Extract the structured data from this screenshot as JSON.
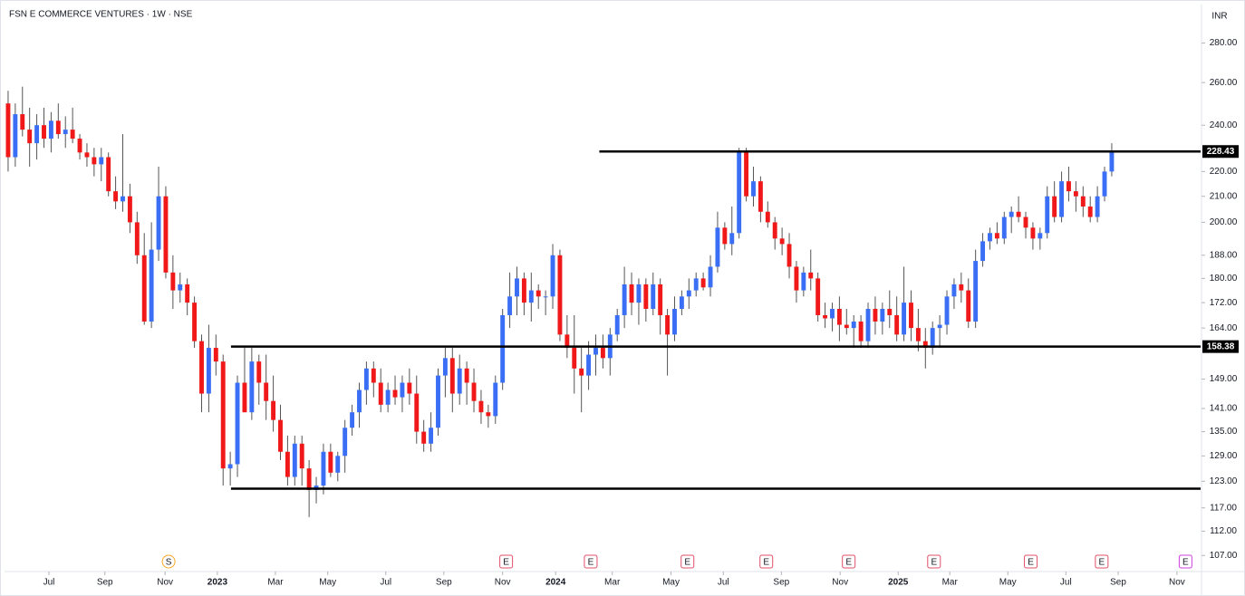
{
  "chart_data": {
    "type": "candlestick",
    "title": "FSN E COMMERCE VENTURES · 1W · NSE",
    "currency": "INR",
    "up_color": "#3a6ff5",
    "down_color": "#f01818",
    "log_scale": true,
    "xlim": [
      -0.5,
      166.4
    ],
    "ylim": [
      104,
      301
    ],
    "yticks": [
      280,
      260,
      240,
      220,
      210,
      200,
      188,
      180,
      172,
      164,
      149,
      141,
      135,
      129,
      123,
      117,
      112,
      107
    ],
    "yticks_format": "fixed2",
    "xticks": [
      {
        "value": 5.7,
        "label": "Jul"
      },
      {
        "value": 13.5,
        "label": "Sep"
      },
      {
        "value": 21.9,
        "label": "Nov"
      },
      {
        "value": 29.2,
        "label": "2023"
      },
      {
        "value": 37.3,
        "label": "Mar"
      },
      {
        "value": 44.6,
        "label": "May"
      },
      {
        "value": 52.7,
        "label": "Jul"
      },
      {
        "value": 60.8,
        "label": "Sep"
      },
      {
        "value": 69.0,
        "label": "Nov"
      },
      {
        "value": 76.4,
        "label": "2024"
      },
      {
        "value": 84.3,
        "label": "Mar"
      },
      {
        "value": 92.5,
        "label": "May"
      },
      {
        "value": 99.8,
        "label": "Jul"
      },
      {
        "value": 107.9,
        "label": "Sep"
      },
      {
        "value": 116.1,
        "label": "Nov"
      },
      {
        "value": 124.2,
        "label": "2025"
      },
      {
        "value": 131.4,
        "label": "Mar"
      },
      {
        "value": 139.5,
        "label": "May"
      },
      {
        "value": 147.6,
        "label": "Jul"
      },
      {
        "value": 154.9,
        "label": "Sep"
      },
      {
        "value": 163.1,
        "label": "Nov"
      }
    ],
    "levels": [
      {
        "value": 228.43,
        "start": 82.5,
        "label": "228.43"
      },
      {
        "value": 158.38,
        "start": 31.1,
        "label": "158.38"
      },
      {
        "value": 121.3,
        "start": 31.1
      }
    ],
    "events": [
      {
        "x": 22.4,
        "label": "S",
        "color": "#f5a623"
      },
      {
        "x": 69.5,
        "label": "E",
        "color": "#e0506a"
      },
      {
        "x": 81.3,
        "label": "E",
        "color": "#e0506a"
      },
      {
        "x": 94.8,
        "label": "E",
        "color": "#e0506a"
      },
      {
        "x": 105.8,
        "label": "E",
        "color": "#e0506a"
      },
      {
        "x": 117.3,
        "label": "E",
        "color": "#e0506a"
      },
      {
        "x": 129.2,
        "label": "E",
        "color": "#e0506a"
      },
      {
        "x": 142.7,
        "label": "E",
        "color": "#e0506a"
      },
      {
        "x": 152.6,
        "label": "E",
        "color": "#e0506a"
      },
      {
        "x": 164.3,
        "label": "E",
        "color": "#d040e0"
      }
    ],
    "candles": [
      [
        250,
        256,
        220,
        226
      ],
      [
        226,
        250,
        222,
        245
      ],
      [
        245,
        258,
        235,
        238
      ],
      [
        238,
        248,
        222,
        232
      ],
      [
        232,
        245,
        225,
        240
      ],
      [
        240,
        248,
        230,
        234
      ],
      [
        234,
        246,
        228,
        242
      ],
      [
        242,
        250,
        234,
        236
      ],
      [
        236,
        244,
        230,
        238
      ],
      [
        238,
        248,
        232,
        234
      ],
      [
        234,
        236,
        225,
        228
      ],
      [
        228,
        232,
        222,
        226
      ],
      [
        226,
        230,
        218,
        223
      ],
      [
        223,
        230,
        216,
        226
      ],
      [
        226,
        228,
        210,
        212
      ],
      [
        212,
        218,
        205,
        208
      ],
      [
        208,
        236,
        204,
        210
      ],
      [
        210,
        215,
        196,
        200
      ],
      [
        200,
        204,
        185,
        188
      ],
      [
        188,
        196,
        165,
        166
      ],
      [
        166,
        200,
        164,
        190
      ],
      [
        190,
        222,
        186,
        210
      ],
      [
        210,
        214,
        180,
        182
      ],
      [
        182,
        188,
        170,
        176
      ],
      [
        176,
        182,
        172,
        178
      ],
      [
        178,
        180,
        168,
        172
      ],
      [
        172,
        174,
        158,
        160
      ],
      [
        160,
        162,
        140,
        145
      ],
      [
        145,
        165,
        140,
        158
      ],
      [
        158,
        162,
        150,
        154
      ],
      [
        154,
        156,
        122,
        126
      ],
      [
        126,
        130,
        122,
        127
      ],
      [
        127,
        150,
        124,
        148
      ],
      [
        148,
        158,
        140,
        140
      ],
      [
        140,
        158,
        138,
        154
      ],
      [
        154,
        156,
        142,
        148
      ],
      [
        148,
        156,
        138,
        143
      ],
      [
        143,
        150,
        135,
        138
      ],
      [
        138,
        142,
        128,
        130
      ],
      [
        130,
        134,
        122,
        124
      ],
      [
        124,
        134,
        122,
        132
      ],
      [
        132,
        134,
        122,
        126
      ],
      [
        126,
        128,
        115,
        121
      ],
      [
        121,
        124,
        118,
        122
      ],
      [
        122,
        132,
        120,
        130
      ],
      [
        130,
        132,
        124,
        125
      ],
      [
        125,
        130,
        123,
        129
      ],
      [
        129,
        138,
        125,
        136
      ],
      [
        136,
        142,
        134,
        140
      ],
      [
        140,
        148,
        136,
        146
      ],
      [
        146,
        154,
        142,
        152
      ],
      [
        152,
        154,
        144,
        148
      ],
      [
        148,
        152,
        140,
        142
      ],
      [
        142,
        148,
        140,
        146
      ],
      [
        146,
        150,
        142,
        144
      ],
      [
        144,
        150,
        140,
        148
      ],
      [
        148,
        152,
        142,
        145
      ],
      [
        145,
        150,
        132,
        135
      ],
      [
        135,
        138,
        130,
        132
      ],
      [
        132,
        140,
        130,
        136
      ],
      [
        136,
        152,
        134,
        150
      ],
      [
        150,
        158,
        144,
        155
      ],
      [
        155,
        158,
        140,
        145
      ],
      [
        145,
        156,
        142,
        152
      ],
      [
        152,
        154,
        142,
        148
      ],
      [
        148,
        152,
        140,
        143
      ],
      [
        143,
        146,
        137,
        140
      ],
      [
        140,
        142,
        136,
        139
      ],
      [
        139,
        150,
        137,
        148
      ],
      [
        148,
        170,
        146,
        168
      ],
      [
        168,
        182,
        164,
        174
      ],
      [
        174,
        184,
        168,
        180
      ],
      [
        180,
        182,
        168,
        172
      ],
      [
        172,
        182,
        166,
        176
      ],
      [
        176,
        178,
        170,
        174
      ],
      [
        174,
        176,
        168,
        174
      ],
      [
        174,
        192,
        170,
        188
      ],
      [
        188,
        190,
        160,
        162
      ],
      [
        162,
        168,
        155,
        158
      ],
      [
        158,
        168,
        145,
        152
      ],
      [
        152,
        158,
        140,
        150
      ],
      [
        150,
        160,
        146,
        156
      ],
      [
        156,
        162,
        150,
        158
      ],
      [
        158,
        162,
        152,
        155
      ],
      [
        155,
        164,
        150,
        162
      ],
      [
        162,
        170,
        160,
        168
      ],
      [
        168,
        184,
        164,
        178
      ],
      [
        178,
        182,
        168,
        172
      ],
      [
        172,
        180,
        165,
        178
      ],
      [
        178,
        180,
        166,
        170
      ],
      [
        170,
        182,
        168,
        178
      ],
      [
        178,
        180,
        162,
        168
      ],
      [
        168,
        170,
        150,
        162
      ],
      [
        162,
        174,
        160,
        170
      ],
      [
        170,
        176,
        168,
        174
      ],
      [
        174,
        180,
        170,
        176
      ],
      [
        176,
        182,
        174,
        180
      ],
      [
        180,
        182,
        176,
        177
      ],
      [
        177,
        188,
        174,
        184
      ],
      [
        184,
        204,
        182,
        198
      ],
      [
        198,
        200,
        190,
        192
      ],
      [
        192,
        206,
        188,
        196
      ],
      [
        196,
        230,
        194,
        228
      ],
      [
        228,
        230,
        208,
        210
      ],
      [
        210,
        222,
        206,
        216
      ],
      [
        216,
        218,
        200,
        204
      ],
      [
        204,
        208,
        198,
        200
      ],
      [
        200,
        202,
        190,
        194
      ],
      [
        194,
        198,
        188,
        192
      ],
      [
        192,
        196,
        180,
        184
      ],
      [
        184,
        186,
        172,
        176
      ],
      [
        176,
        184,
        174,
        182
      ],
      [
        182,
        190,
        176,
        180
      ],
      [
        180,
        182,
        166,
        168
      ],
      [
        168,
        172,
        164,
        167
      ],
      [
        167,
        172,
        163,
        170
      ],
      [
        170,
        174,
        160,
        165
      ],
      [
        165,
        170,
        162,
        164
      ],
      [
        164,
        168,
        158,
        166
      ],
      [
        166,
        168,
        158,
        160
      ],
      [
        160,
        172,
        158,
        170
      ],
      [
        170,
        174,
        162,
        166
      ],
      [
        166,
        172,
        162,
        170
      ],
      [
        170,
        176,
        164,
        168
      ],
      [
        168,
        174,
        160,
        162
      ],
      [
        162,
        184,
        160,
        172
      ],
      [
        172,
        176,
        160,
        164
      ],
      [
        164,
        170,
        157,
        160
      ],
      [
        160,
        164,
        152,
        158
      ],
      [
        158,
        166,
        156,
        164
      ],
      [
        164,
        168,
        158,
        165
      ],
      [
        165,
        176,
        162,
        174
      ],
      [
        174,
        180,
        170,
        178
      ],
      [
        178,
        182,
        172,
        176
      ],
      [
        176,
        180,
        164,
        166
      ],
      [
        166,
        190,
        164,
        186
      ],
      [
        186,
        196,
        184,
        193
      ],
      [
        193,
        198,
        190,
        196
      ],
      [
        196,
        200,
        192,
        194
      ],
      [
        194,
        204,
        192,
        202
      ],
      [
        202,
        206,
        196,
        204
      ],
      [
        204,
        210,
        200,
        202
      ],
      [
        202,
        204,
        194,
        198
      ],
      [
        198,
        200,
        190,
        194
      ],
      [
        194,
        198,
        190,
        196
      ],
      [
        196,
        214,
        194,
        210
      ],
      [
        210,
        216,
        200,
        202
      ],
      [
        202,
        220,
        200,
        216
      ],
      [
        216,
        222,
        208,
        212
      ],
      [
        212,
        216,
        204,
        210
      ],
      [
        210,
        214,
        202,
        206
      ],
      [
        206,
        210,
        200,
        202
      ],
      [
        202,
        214,
        200,
        210
      ],
      [
        210,
        222,
        208,
        220
      ],
      [
        220,
        232,
        218,
        228
      ]
    ]
  }
}
